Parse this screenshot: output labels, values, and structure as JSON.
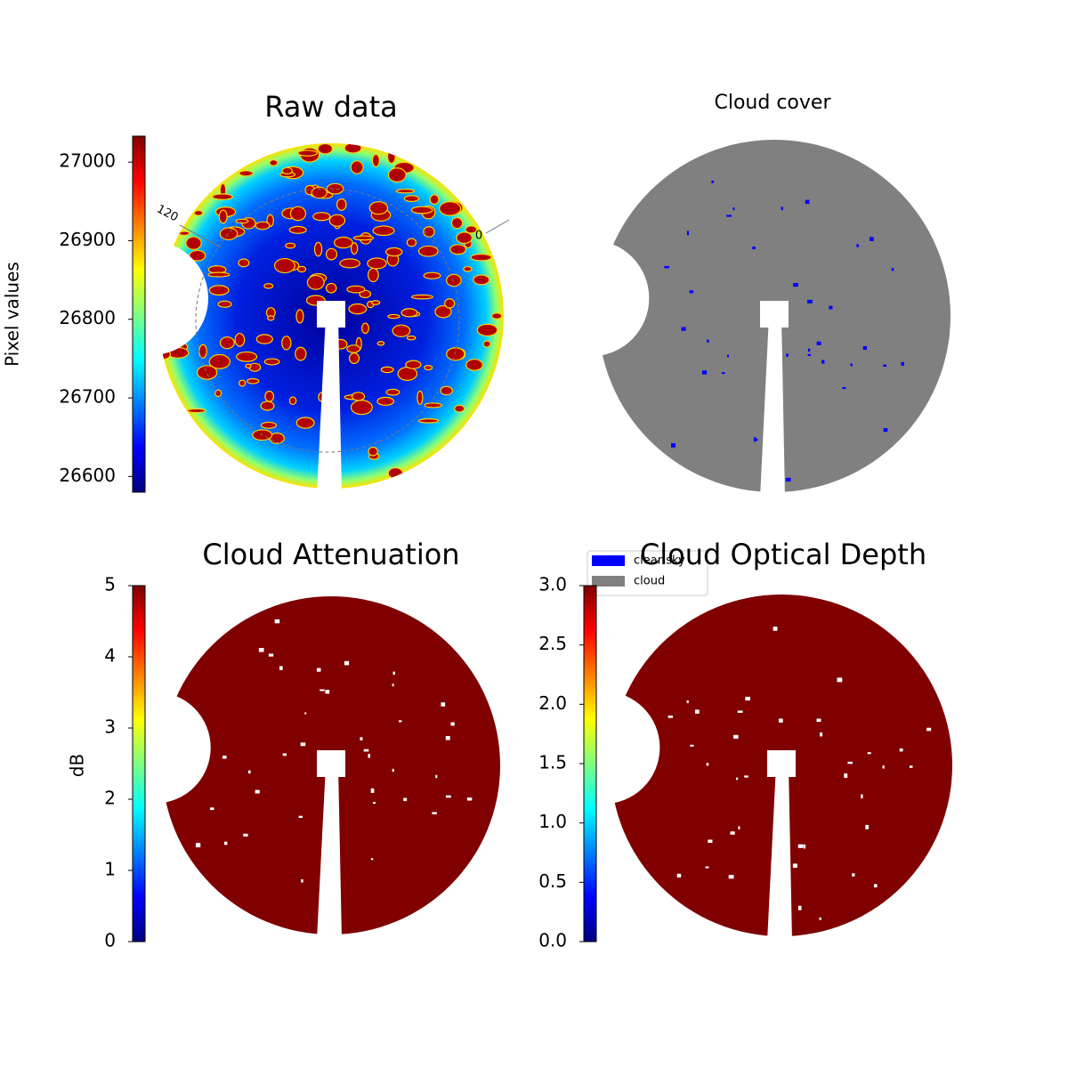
{
  "chart_data": [
    {
      "type": "image",
      "title": "Raw data",
      "colorbar_label": "Pixel values",
      "ylim": [
        26580,
        27033
      ],
      "yticks": [
        26600,
        26700,
        26800,
        26900,
        27000
      ],
      "annotations": [
        "120",
        "0"
      ]
    },
    {
      "type": "image",
      "title": "Cloud cover",
      "legend": [
        {
          "name": "clear sky",
          "color": "#0000ff"
        },
        {
          "name": "cloud",
          "color": "#808080"
        }
      ]
    },
    {
      "type": "image",
      "title": "Cloud Attenuation",
      "colorbar_label": "dB",
      "ylim": [
        0,
        5
      ],
      "yticks": [
        0,
        1,
        2,
        3,
        4,
        5
      ]
    },
    {
      "type": "image",
      "title": "Cloud Optical Depth",
      "ylim": [
        0,
        3
      ],
      "yticks": [
        {
          "value": 0,
          "label": "0.0"
        },
        0.5,
        {
          "value": 1,
          "label": "1.0"
        },
        1.5,
        {
          "value": 2,
          "label": "2.0"
        },
        2.5,
        {
          "value": 3,
          "label": "3.0"
        }
      ]
    }
  ]
}
